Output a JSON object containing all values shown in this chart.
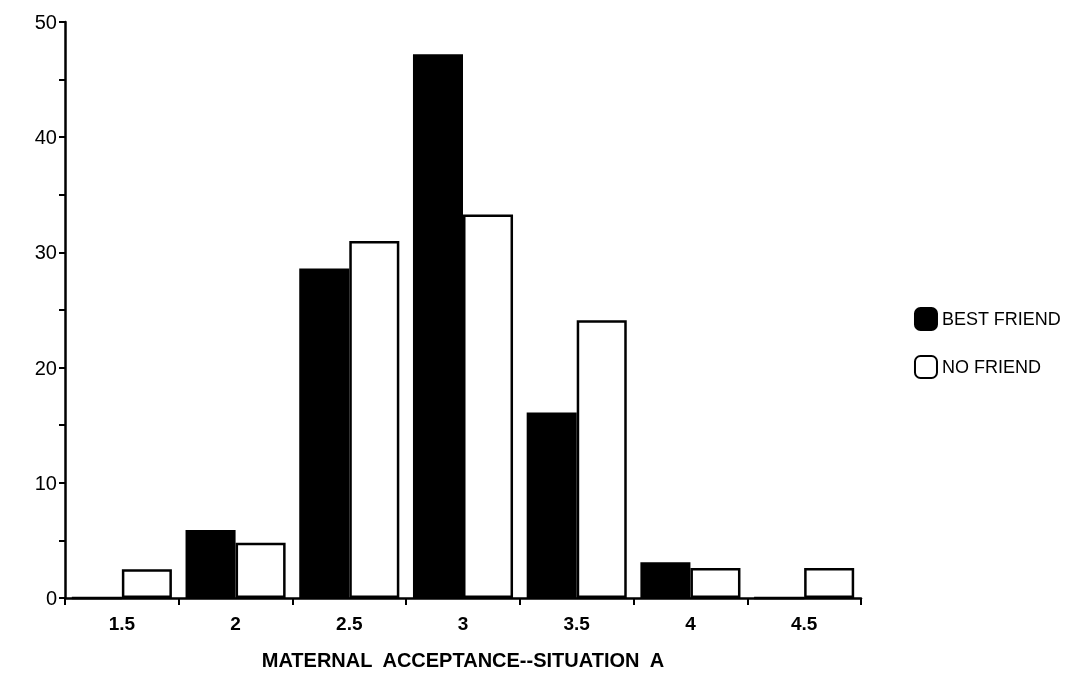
{
  "chart_data": {
    "type": "bar",
    "xlabel": "MATERNAL  ACCEPTANCE--SITUATION  A",
    "categories": [
      "1.5",
      "2",
      "2.5",
      "3",
      "3.5",
      "4",
      "4.5"
    ],
    "series": [
      {
        "name": "BEST FRIEND",
        "color": "#000000",
        "values": [
          0,
          5.9,
          28.6,
          47.2,
          16.1,
          3.1,
          0
        ]
      },
      {
        "name": "NO FRIEND",
        "color": "#ffffff",
        "values": [
          2.5,
          4.8,
          31.0,
          33.3,
          24.1,
          2.6,
          2.6
        ]
      }
    ],
    "ylim": [
      0,
      50
    ],
    "yticks": [
      0,
      {
        "value": 5,
        "label": null
      },
      10,
      {
        "value": 15,
        "label": null
      },
      20,
      {
        "value": 25,
        "label": null
      },
      30,
      {
        "value": 35,
        "label": null
      },
      40,
      {
        "value": 45,
        "label": null
      },
      50
    ],
    "grid": false,
    "legend": "right"
  }
}
